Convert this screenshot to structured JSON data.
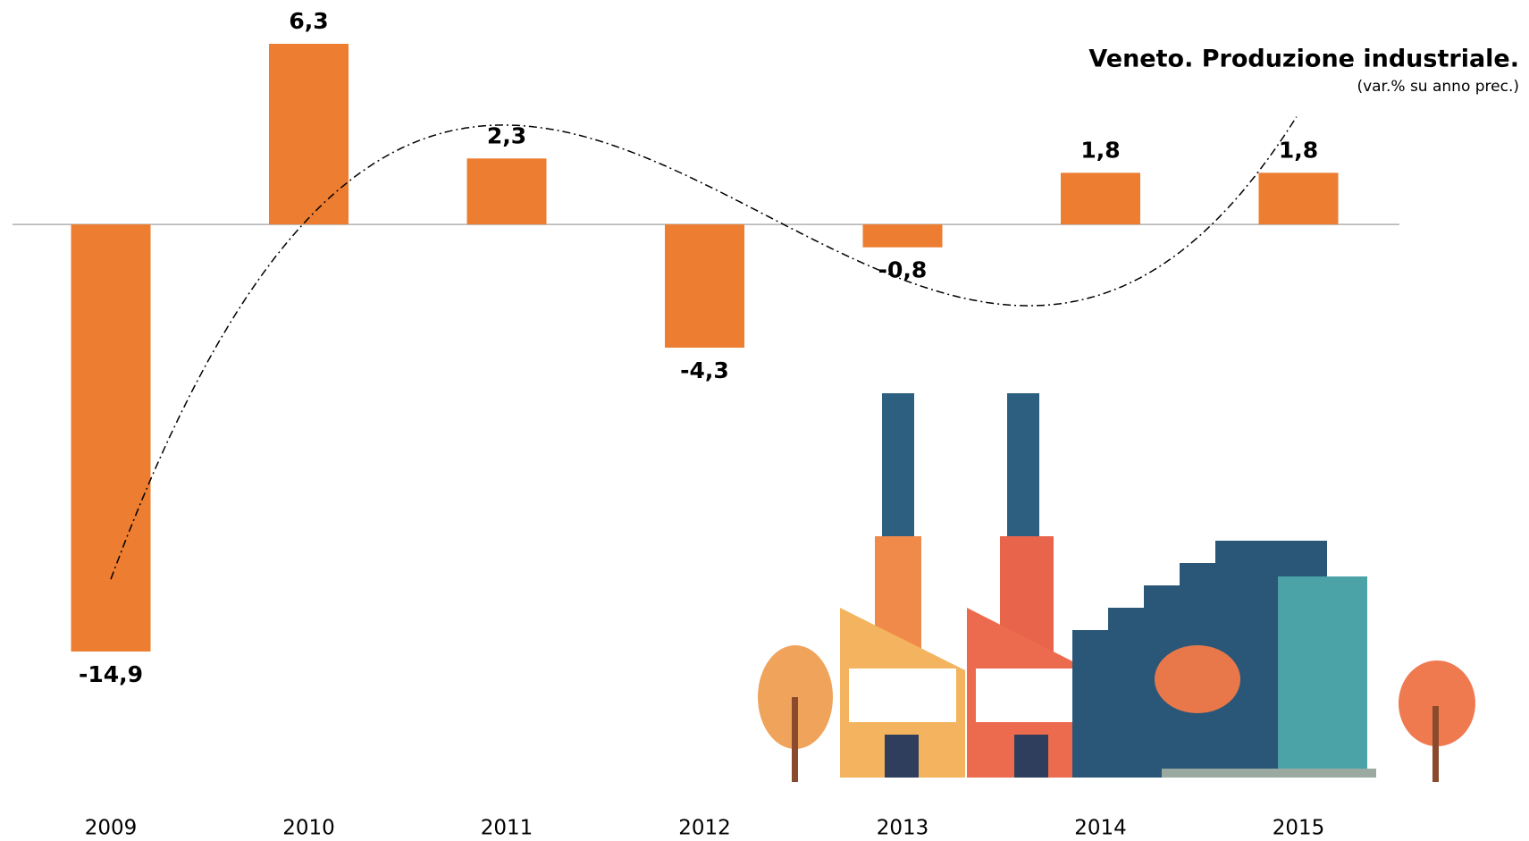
{
  "chart_data": {
    "type": "bar",
    "title": "Veneto. Produzione industriale.",
    "subtitle": "(var.% su anno prec.)",
    "categories": [
      "2009",
      "2010",
      "2011",
      "2012",
      "2013",
      "2014",
      "2015"
    ],
    "values": [
      -14.9,
      6.3,
      2.3,
      -4.3,
      -0.8,
      1.8,
      1.8
    ],
    "value_labels": [
      "-14,9",
      "6,3",
      "2,3",
      "-4,3",
      "-0,8",
      "1,8",
      "1,8"
    ],
    "color": "#ed7d31",
    "trendline": {
      "type": "polynomial",
      "order": 3
    }
  }
}
